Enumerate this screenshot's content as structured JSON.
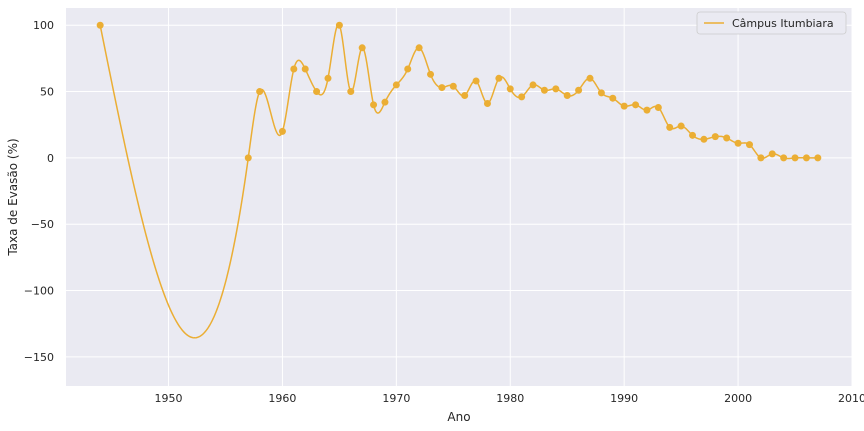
{
  "chart_data": {
    "type": "line",
    "xlabel": "Ano",
    "ylabel": "Taxa de Evasão (%)",
    "xlim": [
      1941,
      2010
    ],
    "ylim": [
      -172,
      113
    ],
    "xticks": [
      1950,
      1960,
      1970,
      1980,
      1990,
      2000,
      2010
    ],
    "yticks": [
      -150,
      -100,
      -50,
      0,
      50,
      100
    ],
    "ytick_labels": [
      "−150",
      "−100",
      "−50",
      "0",
      "50",
      "100"
    ],
    "grid": true,
    "legend_position": "top-right",
    "series": [
      {
        "name": "Câmpus Itumbiara",
        "color": "#ebae34",
        "points": [
          [
            1944,
            100
          ],
          [
            1957,
            0
          ],
          [
            1958,
            50
          ],
          [
            1960,
            20
          ],
          [
            1961,
            67
          ],
          [
            1962,
            67
          ],
          [
            1963,
            50
          ],
          [
            1964,
            60
          ],
          [
            1965,
            100
          ],
          [
            1966,
            50
          ],
          [
            1967,
            83
          ],
          [
            1968,
            40
          ],
          [
            1969,
            42
          ],
          [
            1970,
            55
          ],
          [
            1971,
            67
          ],
          [
            1972,
            83
          ],
          [
            1973,
            63
          ],
          [
            1974,
            53
          ],
          [
            1975,
            54
          ],
          [
            1976,
            47
          ],
          [
            1977,
            58
          ],
          [
            1978,
            41
          ],
          [
            1979,
            60
          ],
          [
            1980,
            52
          ],
          [
            1981,
            46
          ],
          [
            1982,
            55
          ],
          [
            1983,
            51
          ],
          [
            1984,
            52
          ],
          [
            1985,
            47
          ],
          [
            1986,
            51
          ],
          [
            1987,
            60
          ],
          [
            1988,
            49
          ],
          [
            1989,
            45
          ],
          [
            1990,
            39
          ],
          [
            1991,
            40
          ],
          [
            1992,
            36
          ],
          [
            1993,
            38
          ],
          [
            1994,
            23
          ],
          [
            1995,
            24
          ],
          [
            1996,
            17
          ],
          [
            1997,
            14
          ],
          [
            1998,
            16
          ],
          [
            1999,
            15
          ],
          [
            2000,
            11
          ],
          [
            2001,
            10
          ],
          [
            2002,
            0
          ],
          [
            2003,
            3
          ],
          [
            2004,
            0
          ],
          [
            2005,
            0
          ],
          [
            2006,
            0
          ],
          [
            2007,
            0
          ]
        ]
      }
    ]
  }
}
